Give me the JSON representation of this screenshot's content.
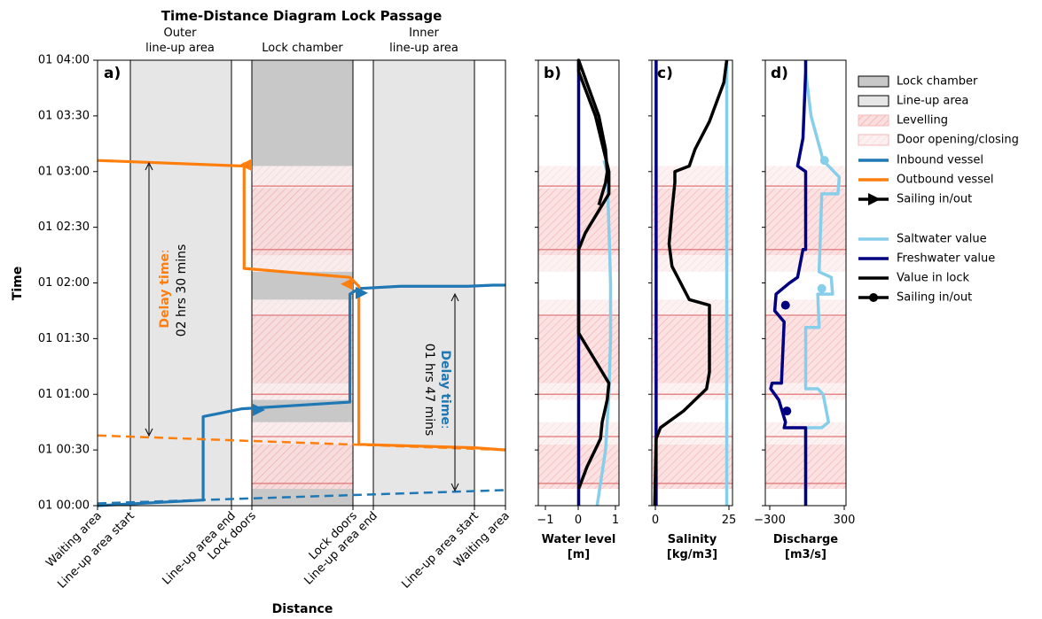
{
  "title": "Time-Distance Diagram Lock Passage",
  "region_headers": [
    {
      "line1": "Outer",
      "line2": "line-up area"
    },
    {
      "line1": "",
      "line2": "Lock chamber"
    },
    {
      "line1": "Inner",
      "line2": "line-up area"
    }
  ],
  "ylabel": "Time",
  "xlabel": "Distance",
  "yticks": [
    "01 00:00",
    "01 00:30",
    "01 01:00",
    "01 01:30",
    "01 02:00",
    "01 02:30",
    "01 03:00",
    "01 03:30",
    "01 04:00"
  ],
  "xticks": [
    "Waiting area",
    "Line-up area start",
    "Line-up area end",
    "Lock doors",
    "Lock doors",
    "Line-up area end",
    "Line-up area start",
    "Waiting area"
  ],
  "panel_labels": [
    "a)",
    "b)",
    "c)",
    "d)"
  ],
  "delay_outbound": {
    "label": "Delay time",
    "value": "02 hrs 30 mins",
    "color": "#ff7f0e"
  },
  "delay_inbound": {
    "label": "Delay time",
    "value": "01 hrs 47 mins",
    "color": "#1f77b4"
  },
  "legend": [
    {
      "label": "Lock chamber",
      "kind": "patch",
      "fill": "#c8c8c8"
    },
    {
      "label": "Line-up area",
      "kind": "patch",
      "fill": "#e6e6e6"
    },
    {
      "label": "Levelling",
      "kind": "hatch",
      "fill": "#fbe0e0"
    },
    {
      "label": "Door opening/closing",
      "kind": "hatch",
      "fill": "#fdf0f0"
    },
    {
      "label": "Inbound vessel",
      "kind": "line",
      "color": "#1f77b4"
    },
    {
      "label": "Outbound vessel",
      "kind": "line",
      "color": "#ff7f0e"
    },
    {
      "label": "Sailing in/out",
      "kind": "arrow",
      "color": "#000000"
    },
    {
      "label": "Saltwater value",
      "kind": "line",
      "color": "#87ceeb"
    },
    {
      "label": "Freshwater value",
      "kind": "line",
      "color": "#000080"
    },
    {
      "label": "Value in lock",
      "kind": "line",
      "color": "#000000"
    },
    {
      "label": "Sailing in/out",
      "kind": "dot",
      "color": "#000000"
    }
  ],
  "chart_data": [
    {
      "type": "line",
      "panel": "a)",
      "title": "Time-Distance Diagram Lock Passage",
      "xlabel": "Distance",
      "ylabel": "Time",
      "ylim_hours": [
        0,
        4
      ],
      "series": [
        {
          "name": "Inbound vessel",
          "color": "#1f77b4",
          "x_pos": [
            0,
            1.72,
            1.72,
            2.52,
            3.97,
            3.97,
            4.3,
            5.27,
            5.94,
            6.6,
            8.0
          ],
          "y_hours": [
            0,
            0.05,
            0.8,
            0.87,
            0.93,
            1.9,
            1.95,
            1.97,
            1.97,
            1.98,
            1.98
          ]
        },
        {
          "name": "Outbound vessel",
          "color": "#ff7f0e",
          "x_pos": [
            0,
            2.5,
            2.62,
            2.62,
            3.97,
            4.29,
            4.29,
            6.0,
            8.0
          ],
          "y_hours": [
            3.1,
            3.05,
            3.07,
            2.13,
            2.05,
            1.97,
            0.55,
            0.52,
            0.5
          ]
        }
      ],
      "delays": [
        "02 hrs 30 mins",
        "01 hrs 47 mins"
      ]
    },
    {
      "type": "line",
      "panel": "b)",
      "xlabel": "Water level\n[m]",
      "xlim": [
        -1.2,
        1.2
      ],
      "xticks": [
        -1,
        0,
        1
      ],
      "series": [
        {
          "name": "Saltwater value",
          "x": [
            0.55,
            0.65,
            0.8,
            0.9,
            0.95,
            0.95,
            0.9,
            0.85,
            0.75
          ],
          "y_hours": [
            0,
            0.2,
            0.5,
            1.0,
            1.5,
            2.0,
            2.5,
            3.0,
            3.1
          ]
        },
        {
          "name": "Freshwater value",
          "x": [
            0,
            0
          ],
          "y_hours": [
            0,
            4
          ]
        },
        {
          "name": "Value in lock",
          "x": [
            0,
            0.25,
            0.65,
            0.7,
            0.85,
            0.9,
            0.5,
            0,
            0,
            0.2,
            0.5,
            0.9,
            0.9,
            0.5,
            0,
            0,
            0.6,
            0.8,
            0.85,
            0.8,
            0.6
          ],
          "y_hours": [
            0.15,
            0.35,
            0.6,
            0.75,
            0.95,
            1.1,
            1.3,
            1.55,
            2.3,
            2.45,
            2.6,
            2.8,
            3.0,
            3.5,
            3.9,
            4.0,
            3.5,
            3.2,
            3.0,
            2.9,
            2.7
          ]
        }
      ]
    },
    {
      "type": "line",
      "panel": "c)",
      "xlabel": "Salinity\n[kg/m3]",
      "xlim": [
        -1,
        27
      ],
      "xticks": [
        0,
        25
      ],
      "series": [
        {
          "name": "Saltwater value",
          "x": [
            25,
            25
          ],
          "y_hours": [
            0,
            4
          ]
        },
        {
          "name": "Freshwater value",
          "x": [
            0.5,
            0.5
          ],
          "y_hours": [
            0,
            4
          ]
        },
        {
          "name": "Value in lock",
          "x": [
            0,
            0.5,
            2,
            10,
            18,
            19,
            19,
            12,
            6,
            5,
            6,
            7,
            7,
            12,
            14,
            19,
            24,
            25
          ],
          "y_hours": [
            0,
            0.6,
            0.7,
            0.85,
            1.05,
            1.2,
            1.8,
            1.85,
            2.15,
            2.35,
            2.65,
            2.9,
            3.0,
            3.05,
            3.2,
            3.45,
            3.8,
            4.0
          ]
        }
      ]
    },
    {
      "type": "line",
      "panel": "d)",
      "xlabel": "Discharge\n[m3/s]",
      "xlim": [
        -300,
        300
      ],
      "xticks": [
        -300,
        300
      ],
      "series": [
        {
          "name": "Saltwater value",
          "x": [
            0,
            0,
            120,
            170,
            130,
            90,
            0,
            0,
            100,
            90,
            200,
            190,
            100,
            120,
            240,
            250,
            130,
            40,
            0,
            0,
            0
          ],
          "y_hours": [
            0,
            0.7,
            0.7,
            0.75,
            1.0,
            1.05,
            1.05,
            1.6,
            1.6,
            1.9,
            1.9,
            2.05,
            2.1,
            2.8,
            2.8,
            2.95,
            3.1,
            3.5,
            3.9,
            4.0,
            4.0
          ]
        },
        {
          "name": "Freshwater value",
          "x": [
            0,
            0,
            -160,
            -150,
            -200,
            -260,
            -250,
            -180,
            -160,
            -230,
            -220,
            -120,
            -60,
            -20,
            0,
            0,
            -60,
            -20,
            0,
            0
          ],
          "y_hours": [
            0,
            0.7,
            0.7,
            0.75,
            0.95,
            1.05,
            1.1,
            1.1,
            1.65,
            1.75,
            1.9,
            2.0,
            2.05,
            2.3,
            2.3,
            3.0,
            3.05,
            3.3,
            3.9,
            4.0
          ]
        }
      ],
      "markers": [
        {
          "series": "Freshwater value",
          "x": -140,
          "y_hours": 0.85
        },
        {
          "series": "Freshwater value",
          "x": -150,
          "y_hours": 1.8
        },
        {
          "series": "Saltwater value",
          "x": 120,
          "y_hours": 1.95
        },
        {
          "series": "Saltwater value",
          "x": 140,
          "y_hours": 3.1
        }
      ]
    }
  ]
}
